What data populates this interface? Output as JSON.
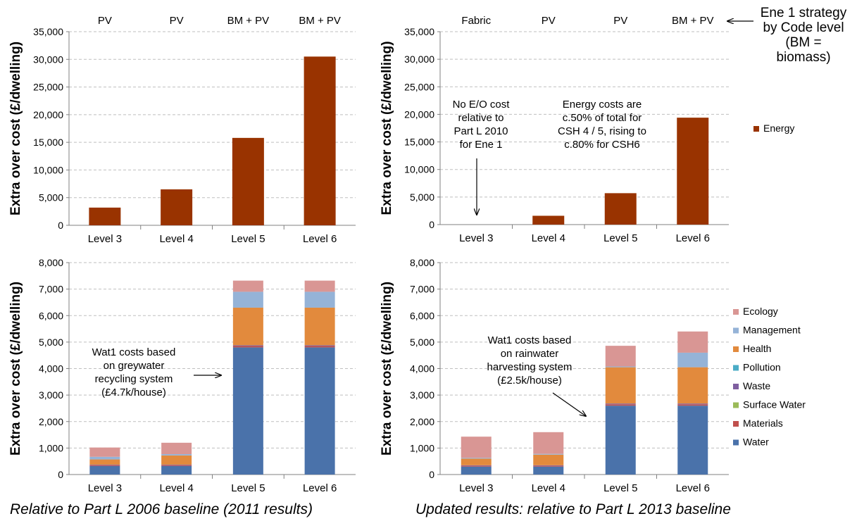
{
  "captions": {
    "left": "Relative to Part L 2006 baseline (2011 results)",
    "right": "Updated results: relative to Part L 2013 baseline"
  },
  "strategy_note": {
    "lines": [
      "Ene 1 strategy",
      "by Code level",
      "(BM =",
      "biomass)"
    ]
  },
  "colors": {
    "Energy": "#993300",
    "Water": "#4a72aa",
    "Materials": "#c0504d",
    "Surface Water": "#9bbb59",
    "Waste": "#7f5fa0",
    "Pollution": "#4bacc6",
    "Health": "#e28a3d",
    "Management": "#95b3d7",
    "Ecology": "#d99694",
    "grid": "#bfbfbf",
    "axis": "#808080"
  },
  "chart_data": [
    {
      "id": "top-left",
      "type": "bar",
      "ylabel": "Extra over cost (£/dwelling)",
      "ylim": [
        0,
        35000
      ],
      "yticks": [
        0,
        5000,
        10000,
        15000,
        20000,
        25000,
        30000,
        35000
      ],
      "ytick_labels": [
        "0",
        "5,000",
        "10,000",
        "15,000",
        "20,000",
        "25,000",
        "30,000",
        "35,000"
      ],
      "categories": [
        "Level 3",
        "Level 4",
        "Level 5",
        "Level 6"
      ],
      "top_labels": [
        "PV",
        "PV",
        "BM + PV",
        "BM + PV"
      ],
      "series": [
        {
          "name": "Energy",
          "values": [
            3200,
            6500,
            15800,
            30500
          ]
        }
      ],
      "grid": true
    },
    {
      "id": "top-right",
      "type": "bar",
      "ylabel": "Extra over cost (£/dwelling)",
      "ylim": [
        0,
        35000
      ],
      "yticks": [
        0,
        5000,
        10000,
        15000,
        20000,
        25000,
        30000,
        35000
      ],
      "ytick_labels": [
        "0",
        "5,000",
        "10,000",
        "15,000",
        "20,000",
        "25,000",
        "30,000",
        "35,000"
      ],
      "categories": [
        "Level 3",
        "Level 4",
        "Level 5",
        "Level 6"
      ],
      "top_labels": [
        "Fabric",
        "PV",
        "PV",
        "BM + PV"
      ],
      "series": [
        {
          "name": "Energy",
          "values": [
            0,
            1600,
            5700,
            19400
          ]
        }
      ],
      "grid": true,
      "legend": {
        "placement": "right",
        "entries": [
          "Energy"
        ]
      },
      "annotations": [
        {
          "lines": [
            "No E/O cost",
            "relative to",
            "Part L 2010",
            "for Ene 1"
          ]
        },
        {
          "lines": [
            "Energy costs are",
            "c.50% of total for",
            "CSH 4 / 5, rising to",
            "c.80% for CSH6"
          ]
        }
      ]
    },
    {
      "id": "bottom-left",
      "type": "bar",
      "stacked": true,
      "ylabel": "Extra over cost (£/dwelling)",
      "ylim": [
        0,
        8000
      ],
      "yticks": [
        0,
        1000,
        2000,
        3000,
        4000,
        5000,
        6000,
        7000,
        8000
      ],
      "ytick_labels": [
        "0",
        "1,000",
        "2,000",
        "3,000",
        "4,000",
        "5,000",
        "6,000",
        "7,000",
        "8,000"
      ],
      "categories": [
        "Level 3",
        "Level 4",
        "Level 5",
        "Level 6"
      ],
      "series": [
        {
          "name": "Water",
          "values": [
            320,
            320,
            4800,
            4800
          ]
        },
        {
          "name": "Materials",
          "values": [
            30,
            30,
            50,
            50
          ]
        },
        {
          "name": "Surface Water",
          "values": [
            0,
            0,
            0,
            0
          ]
        },
        {
          "name": "Waste",
          "values": [
            20,
            20,
            30,
            30
          ]
        },
        {
          "name": "Pollution",
          "values": [
            0,
            0,
            0,
            0
          ]
        },
        {
          "name": "Health",
          "values": [
            200,
            350,
            1420,
            1420
          ]
        },
        {
          "name": "Management",
          "values": [
            100,
            50,
            600,
            600
          ]
        },
        {
          "name": "Ecology",
          "values": [
            350,
            430,
            420,
            420
          ]
        }
      ],
      "grid": true,
      "annotations": [
        {
          "lines": [
            "Wat1 costs based",
            "on greywater",
            "recycling system",
            "(£4.7k/house)"
          ]
        }
      ]
    },
    {
      "id": "bottom-right",
      "type": "bar",
      "stacked": true,
      "ylabel": "Extra over cost (£/dwelling)",
      "ylim": [
        0,
        8000
      ],
      "yticks": [
        0,
        1000,
        2000,
        3000,
        4000,
        5000,
        6000,
        7000,
        8000
      ],
      "ytick_labels": [
        "0",
        "1,000",
        "2,000",
        "3,000",
        "4,000",
        "5,000",
        "6,000",
        "7,000",
        "8,000"
      ],
      "categories": [
        "Level 3",
        "Level 4",
        "Level 5",
        "Level 6"
      ],
      "series": [
        {
          "name": "Water",
          "values": [
            300,
            300,
            2600,
            2600
          ]
        },
        {
          "name": "Materials",
          "values": [
            30,
            30,
            50,
            50
          ]
        },
        {
          "name": "Surface Water",
          "values": [
            0,
            0,
            0,
            0
          ]
        },
        {
          "name": "Waste",
          "values": [
            20,
            20,
            30,
            30
          ]
        },
        {
          "name": "Pollution",
          "values": [
            0,
            0,
            0,
            0
          ]
        },
        {
          "name": "Health",
          "values": [
            250,
            400,
            1370,
            1370
          ]
        },
        {
          "name": "Management",
          "values": [
            30,
            30,
            30,
            550
          ]
        },
        {
          "name": "Ecology",
          "values": [
            800,
            820,
            780,
            800
          ]
        }
      ],
      "grid": true,
      "legend": {
        "placement": "right",
        "entries": [
          "Ecology",
          "Management",
          "Health",
          "Pollution",
          "Waste",
          "Surface Water",
          "Materials",
          "Water"
        ]
      },
      "annotations": [
        {
          "lines": [
            "Wat1 costs based",
            "on rainwater",
            "harvesting system",
            "(£2.5k/house)"
          ]
        }
      ]
    }
  ]
}
